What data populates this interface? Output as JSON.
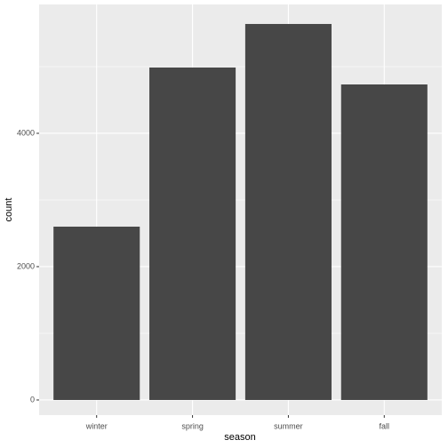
{
  "chart_data": {
    "type": "bar",
    "x_label": "season",
    "y_label": "count",
    "categories": [
      "winter",
      "spring",
      "summer",
      "fall"
    ],
    "values": [
      2600,
      4987,
      5640,
      4733
    ],
    "color": "#474747",
    "ylim": [
      -227,
      5933
    ],
    "yticks": [
      0,
      2000,
      4000
    ],
    "y_minor_gridlines": [
      1000,
      3000,
      5000
    ],
    "grid": true
  }
}
